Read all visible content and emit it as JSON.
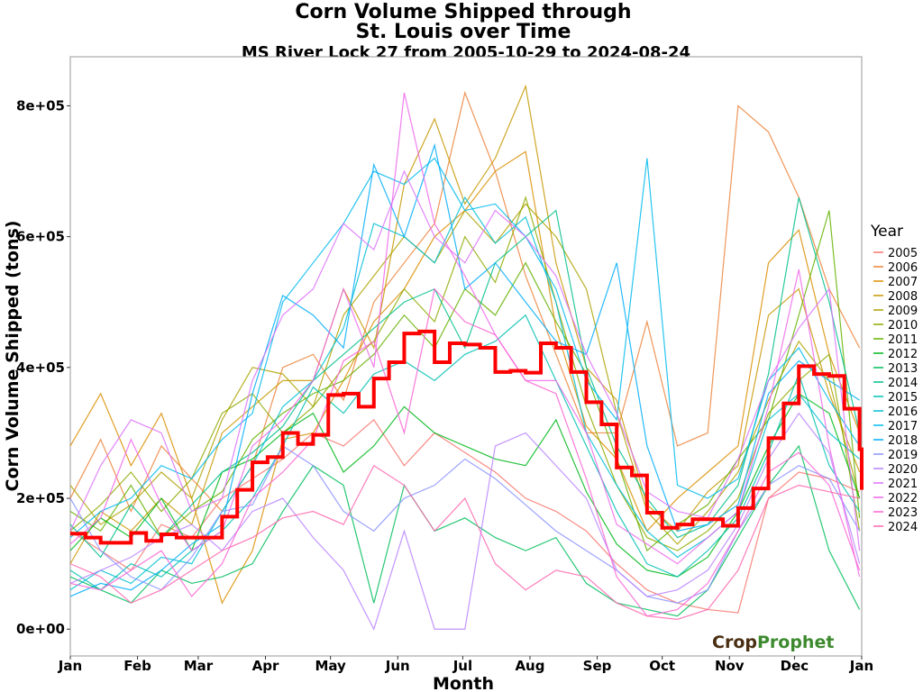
{
  "chart_data": {
    "type": "line",
    "title_line1": "Corn Volume Shipped through",
    "title_line2": "St. Louis over Time",
    "subtitle": "MS River Lock 27 from 2005-10-29 to 2024-08-24",
    "xlabel": "Month",
    "ylabel": "Corn Volume Shipped (tons)",
    "xlim_days": [
      0,
      365
    ],
    "ylim": [
      -41000,
      875000
    ],
    "x_ticks": [
      {
        "label": "Jan",
        "day": 0
      },
      {
        "label": "Feb",
        "day": 31
      },
      {
        "label": "Mar",
        "day": 59
      },
      {
        "label": "Apr",
        "day": 90
      },
      {
        "label": "May",
        "day": 120
      },
      {
        "label": "Jun",
        "day": 151
      },
      {
        "label": "Jul",
        "day": 181
      },
      {
        "label": "Aug",
        "day": 212
      },
      {
        "label": "Sep",
        "day": 243
      },
      {
        "label": "Oct",
        "day": 273
      },
      {
        "label": "Nov",
        "day": 304
      },
      {
        "label": "Dec",
        "day": 334
      },
      {
        "label": "Jan",
        "day": 365
      }
    ],
    "y_ticks": [
      {
        "label": "0e+00",
        "value": 0
      },
      {
        "label": "2e+05",
        "value": 200000
      },
      {
        "label": "4e+05",
        "value": 400000
      },
      {
        "label": "6e+05",
        "value": 600000
      },
      {
        "label": "8e+05",
        "value": 800000
      }
    ],
    "legend_title": "Year",
    "legend_position": "right",
    "year_series_step_days": 14,
    "year_series_unit_multiplier": 1000,
    "series": [
      {
        "name": "2005",
        "color": "#F8766D",
        "values": [
          150,
          120,
          90,
          160,
          140,
          200,
          230,
          260,
          300,
          280,
          320,
          250,
          300,
          270,
          240,
          200,
          180,
          150,
          100,
          60,
          40,
          30,
          25,
          200,
          240,
          230,
          210
        ]
      },
      {
        "name": "2006",
        "color": "#EC8239",
        "values": [
          200,
          290,
          180,
          280,
          230,
          180,
          250,
          400,
          420,
          350,
          500,
          560,
          620,
          820,
          700,
          540,
          420,
          300,
          300,
          470,
          280,
          300,
          800,
          760,
          660,
          520,
          430
        ]
      },
      {
        "name": "2007",
        "color": "#DB8E00",
        "values": [
          280,
          360,
          250,
          330,
          200,
          40,
          120,
          290,
          300,
          380,
          470,
          520,
          600,
          640,
          700,
          730,
          460,
          310,
          260,
          150,
          200,
          240,
          280,
          560,
          610,
          420,
          300
        ]
      },
      {
        "name": "2008",
        "color": "#C79800",
        "values": [
          100,
          180,
          150,
          200,
          160,
          300,
          340,
          380,
          380,
          520,
          430,
          680,
          780,
          650,
          720,
          830,
          560,
          400,
          350,
          190,
          150,
          210,
          250,
          480,
          520,
          360,
          240
        ]
      },
      {
        "name": "2009",
        "color": "#AEA200",
        "values": [
          220,
          160,
          190,
          240,
          200,
          320,
          400,
          390,
          340,
          480,
          540,
          600,
          560,
          640,
          590,
          650,
          600,
          520,
          330,
          180,
          130,
          180,
          240,
          350,
          440,
          380,
          200
        ]
      },
      {
        "name": "2010",
        "color": "#8FAA00",
        "values": [
          150,
          190,
          240,
          180,
          230,
          330,
          360,
          300,
          340,
          400,
          440,
          520,
          470,
          600,
          530,
          660,
          500,
          340,
          220,
          140,
          120,
          150,
          200,
          330,
          380,
          420,
          150
        ]
      },
      {
        "name": "2011",
        "color": "#64B200",
        "values": [
          180,
          150,
          220,
          140,
          180,
          210,
          290,
          330,
          360,
          380,
          420,
          480,
          430,
          520,
          480,
          560,
          470,
          390,
          260,
          120,
          160,
          190,
          260,
          320,
          480,
          640,
          170
        ]
      },
      {
        "name": "2012",
        "color": "#00B81B",
        "values": [
          120,
          170,
          140,
          200,
          120,
          240,
          260,
          300,
          330,
          240,
          280,
          340,
          300,
          280,
          260,
          250,
          320,
          210,
          130,
          90,
          80,
          110,
          180,
          280,
          360,
          330,
          200
        ]
      },
      {
        "name": "2013",
        "color": "#00BD5C",
        "values": [
          80,
          60,
          40,
          90,
          70,
          80,
          100,
          180,
          250,
          220,
          40,
          220,
          150,
          170,
          140,
          120,
          140,
          70,
          40,
          30,
          20,
          60,
          140,
          220,
          280,
          120,
          30
        ]
      },
      {
        "name": "2014",
        "color": "#00C08B",
        "values": [
          160,
          110,
          190,
          140,
          190,
          240,
          270,
          310,
          380,
          420,
          460,
          500,
          520,
          430,
          560,
          600,
          640,
          400,
          280,
          200,
          140,
          160,
          220,
          390,
          660,
          500,
          300
        ]
      },
      {
        "name": "2015",
        "color": "#00C1B2",
        "values": [
          90,
          60,
          100,
          80,
          120,
          150,
          200,
          280,
          370,
          330,
          390,
          410,
          380,
          420,
          440,
          480,
          380,
          280,
          180,
          100,
          80,
          120,
          170,
          270,
          390,
          250,
          180
        ]
      },
      {
        "name": "2016",
        "color": "#00BFD4",
        "values": [
          60,
          90,
          70,
          110,
          100,
          180,
          250,
          340,
          380,
          460,
          620,
          600,
          560,
          660,
          590,
          630,
          500,
          300,
          220,
          150,
          110,
          140,
          180,
          320,
          360,
          300,
          260
        ]
      },
      {
        "name": "2017",
        "color": "#00BAEF",
        "values": [
          140,
          180,
          200,
          250,
          230,
          290,
          330,
          500,
          560,
          620,
          700,
          680,
          720,
          640,
          650,
          600,
          520,
          380,
          320,
          720,
          220,
          200,
          230,
          380,
          430,
          350,
          280
        ]
      },
      {
        "name": "2018",
        "color": "#00ADFA",
        "values": [
          50,
          70,
          60,
          90,
          130,
          160,
          360,
          510,
          480,
          430,
          710,
          600,
          740,
          520,
          560,
          500,
          440,
          420,
          560,
          280,
          150,
          160,
          190,
          360,
          410,
          380,
          350
        ]
      },
      {
        "name": "2019",
        "color": "#8B93FF",
        "values": [
          200,
          120,
          80,
          60,
          110,
          180,
          190,
          280,
          250,
          180,
          150,
          200,
          220,
          260,
          230,
          190,
          150,
          120,
          90,
          50,
          40,
          60,
          150,
          220,
          250,
          230,
          150
        ]
      },
      {
        "name": "2020",
        "color": "#B983FF",
        "values": [
          70,
          90,
          110,
          140,
          160,
          120,
          180,
          200,
          140,
          90,
          0,
          150,
          0,
          0,
          280,
          300,
          250,
          200,
          90,
          50,
          60,
          90,
          160,
          260,
          330,
          270,
          100
        ]
      },
      {
        "name": "2021",
        "color": "#DC71FA",
        "values": [
          150,
          250,
          320,
          300,
          180,
          200,
          380,
          480,
          520,
          620,
          580,
          700,
          600,
          560,
          640,
          600,
          540,
          420,
          330,
          210,
          180,
          170,
          260,
          380,
          460,
          520,
          120
        ]
      },
      {
        "name": "2022",
        "color": "#EE67EB",
        "values": [
          130,
          170,
          290,
          190,
          120,
          150,
          280,
          320,
          380,
          520,
          400,
          820,
          620,
          540,
          450,
          380,
          380,
          300,
          160,
          130,
          100,
          140,
          180,
          340,
          550,
          280,
          80
        ]
      },
      {
        "name": "2023",
        "color": "#FA62D4",
        "values": [
          70,
          60,
          90,
          120,
          50,
          100,
          200,
          240,
          290,
          410,
          440,
          300,
          520,
          470,
          450,
          380,
          360,
          230,
          80,
          20,
          30,
          70,
          150,
          240,
          270,
          220,
          90
        ]
      },
      {
        "name": "2024",
        "color": "#FF65AE",
        "values": [
          100,
          80,
          40,
          60,
          90,
          120,
          140,
          170,
          180,
          160,
          250,
          220,
          150,
          200,
          100,
          60,
          90,
          80,
          40,
          20,
          15,
          30,
          90,
          200,
          220,
          210,
          200
        ]
      }
    ],
    "weekly_median": {
      "color": "#FF0000",
      "step_days": 7,
      "values": [
        146000,
        140000,
        132000,
        132000,
        147000,
        135000,
        145000,
        140000,
        140000,
        140000,
        172000,
        213000,
        255000,
        263000,
        300000,
        283000,
        297000,
        358000,
        360000,
        340000,
        383000,
        408000,
        452000,
        455000,
        408000,
        437000,
        435000,
        430000,
        393000,
        395000,
        392000,
        437000,
        430000,
        393000,
        347000,
        313000,
        247000,
        235000,
        178000,
        155000,
        160000,
        168000,
        168000,
        158000,
        185000,
        215000,
        292000,
        345000,
        402000,
        390000,
        387000,
        337000,
        275000,
        213000
      ]
    }
  },
  "logo": {
    "part1": "Crop",
    "part2": "Prophet"
  }
}
